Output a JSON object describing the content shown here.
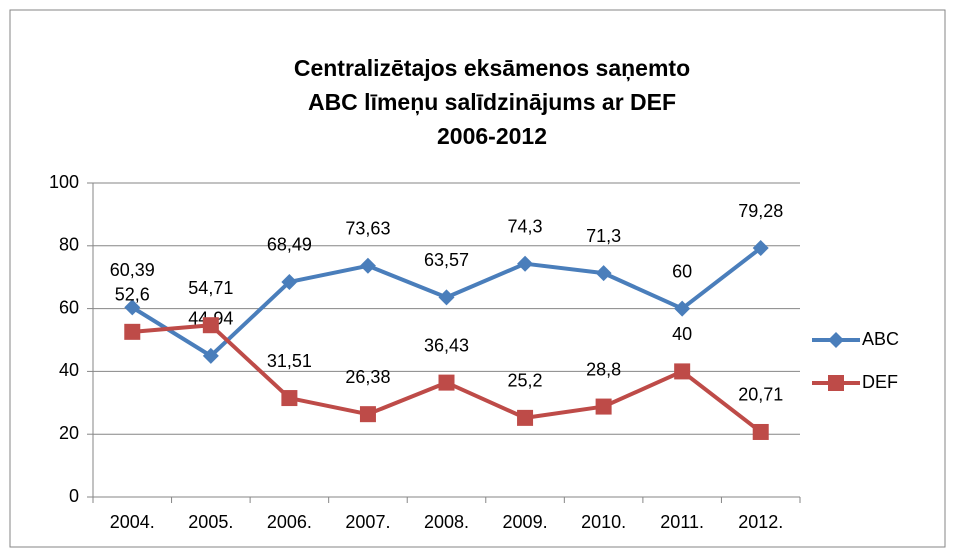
{
  "chart_data": {
    "type": "line",
    "title": [
      "Centralizētajos  eksāmenos saņemto",
      "ABC līmeņu salīdzinājums ar DEF",
      "2006-2012"
    ],
    "categories": [
      "2004.",
      "2005.",
      "2006.",
      "2007.",
      "2008.",
      "2009.",
      "2010.",
      "2011.",
      "2012."
    ],
    "series": [
      {
        "name": "ABC",
        "color": "#4a7ebb",
        "marker": "diamond",
        "values": [
          60.39,
          44.94,
          68.49,
          73.63,
          63.57,
          74.3,
          71.3,
          60,
          79.28
        ],
        "value_labels": [
          "60,39",
          "44,94",
          "68,49",
          "73,63",
          "63,57",
          "74,3",
          "71,3",
          "60",
          "79,28"
        ]
      },
      {
        "name": "DEF",
        "color": "#be4b48",
        "marker": "square",
        "values": [
          52.6,
          54.71,
          31.51,
          26.38,
          36.43,
          25.2,
          28.8,
          40,
          20.71
        ],
        "value_labels": [
          "52,6",
          "54,71",
          "31,51",
          "26,38",
          "36,43",
          "25,2",
          "28,8",
          "40",
          "20,71"
        ]
      }
    ],
    "ylim": [
      0,
      100
    ],
    "yticks": [
      0,
      20,
      40,
      60,
      80,
      100
    ],
    "grid": true,
    "legend": "right"
  }
}
